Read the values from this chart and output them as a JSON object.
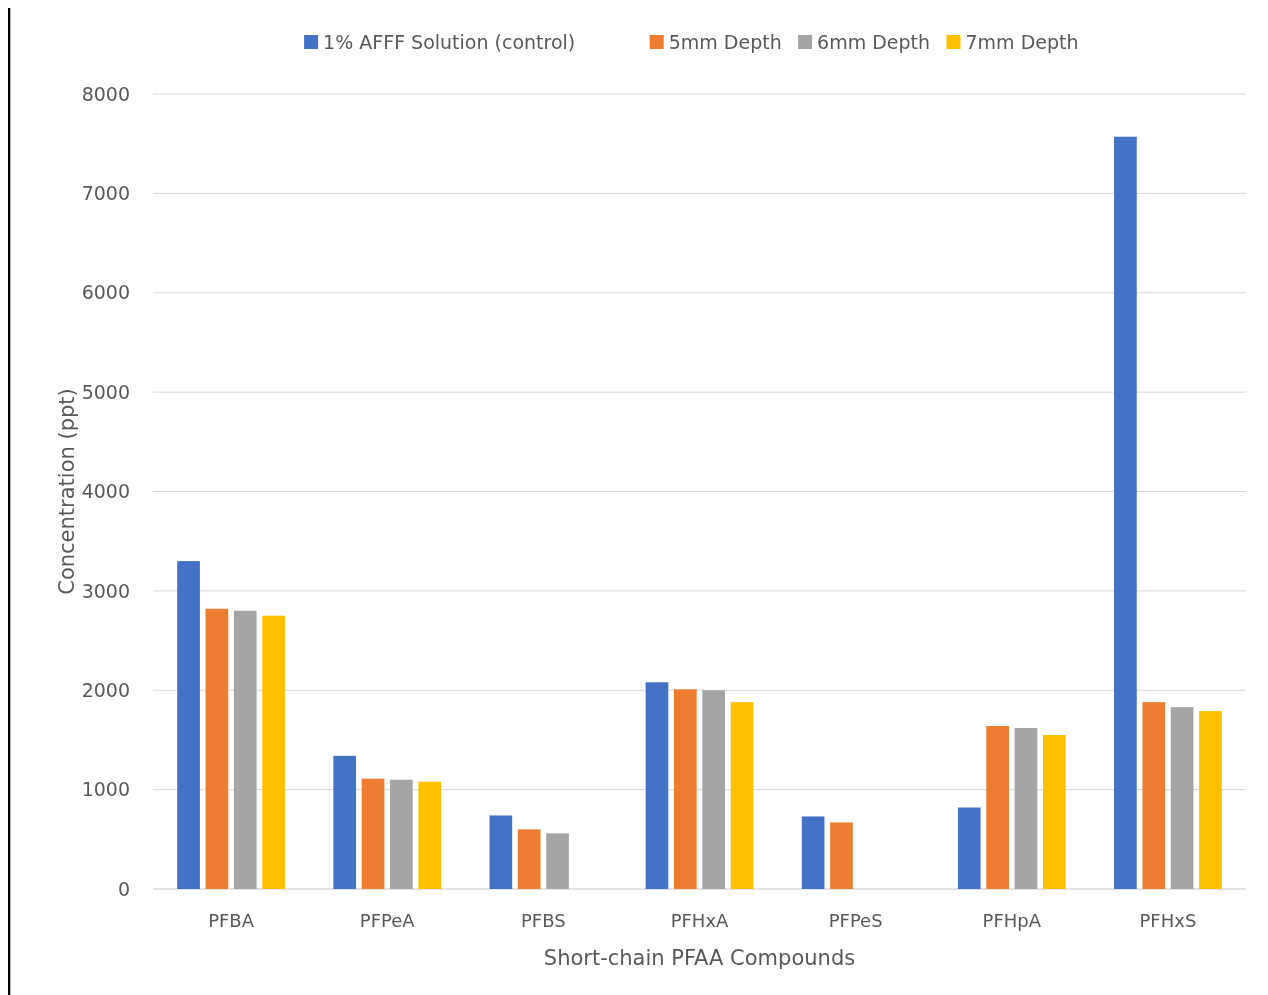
{
  "chart_data": {
    "type": "bar",
    "xlabel": "Short-chain PFAA Compounds",
    "ylabel": "Concentration (ppt)",
    "categories": [
      "PFBA",
      "PFPeA",
      "PFBS",
      "PFHxA",
      "PFPeS",
      "PFHpA",
      "PFHxS"
    ],
    "series": [
      {
        "name": "1% AFFF Solution (control)",
        "color": "#4472c4",
        "values": [
          3300,
          1340,
          740,
          2080,
          730,
          820,
          7570
        ]
      },
      {
        "name": "5mm Depth",
        "color": "#ed7d31",
        "values": [
          2820,
          1110,
          600,
          2010,
          670,
          1640,
          1880
        ]
      },
      {
        "name": "6mm Depth",
        "color": "#a5a5a5",
        "values": [
          2800,
          1100,
          560,
          2000,
          null,
          1620,
          1830
        ]
      },
      {
        "name": "7mm Depth",
        "color": "#ffc000",
        "values": [
          2750,
          1080,
          null,
          1880,
          null,
          1550,
          1790
        ]
      }
    ],
    "ylim": [
      0,
      8000
    ],
    "yticks": [
      0,
      1000,
      2000,
      3000,
      4000,
      5000,
      6000,
      7000,
      8000
    ],
    "grid": "y",
    "legend": "top"
  }
}
